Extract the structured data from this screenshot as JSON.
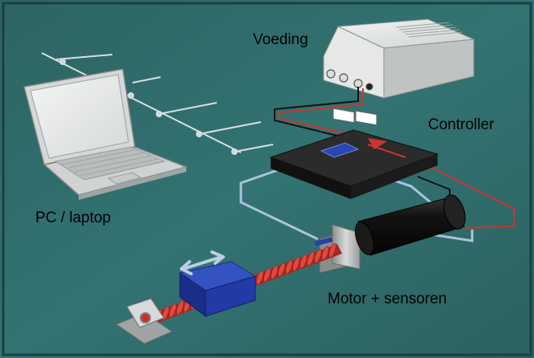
{
  "labels": {
    "power_supply": "Voeding",
    "controller": "Controller",
    "pc": "PC / laptop",
    "motor": "Motor + sensoren"
  },
  "colors": {
    "background": "#2f6a69",
    "frame": "#1a3a3a",
    "power_cable": "#c8362e",
    "signal_cable": "#a9c3dc",
    "controller_body": "#161616",
    "motor_body": "#141414",
    "carriage": "#1f3aa3",
    "screw": "#c0302a",
    "laptop": "#e4e6e4"
  },
  "icons": [
    "laptop-icon",
    "power-supply-icon",
    "controller-icon",
    "motor-icon",
    "carriage-icon",
    "lead-screw-icon",
    "bearing-block-icon",
    "double-arrow-icon"
  ]
}
